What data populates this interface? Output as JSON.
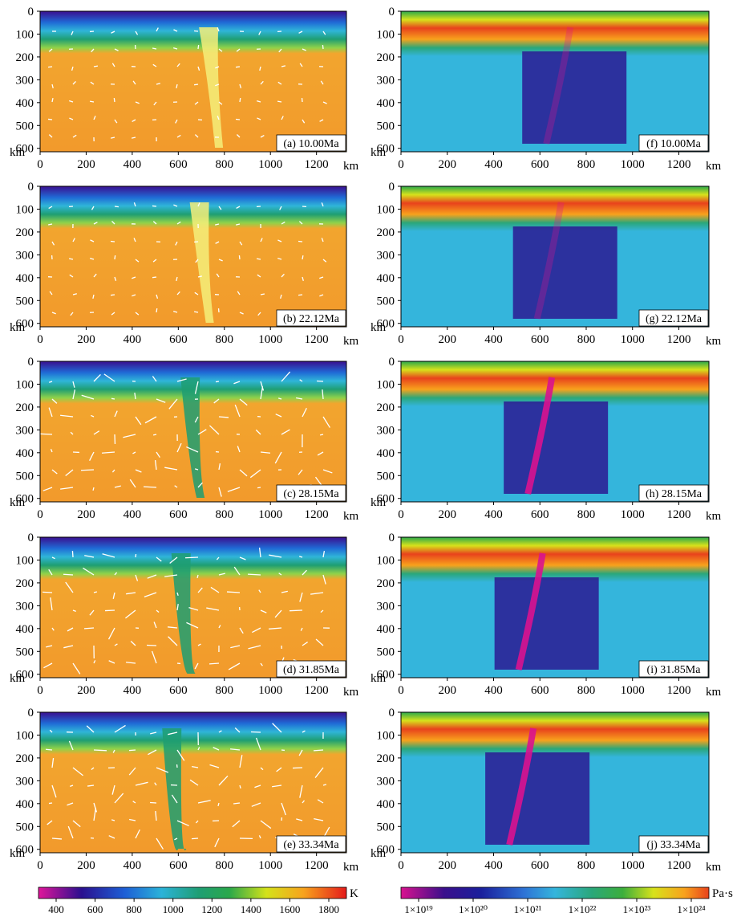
{
  "y_ticks": [
    "0",
    "100",
    "200",
    "300",
    "400",
    "500",
    "600"
  ],
  "x_ticks": [
    "0",
    "200",
    "400",
    "600",
    "800",
    "1000",
    "1200"
  ],
  "km": "km",
  "panels_left": [
    {
      "label": "(a) 10.00Ma"
    },
    {
      "label": "(b) 22.12Ma"
    },
    {
      "label": "(c) 28.15Ma"
    },
    {
      "label": "(d) 31.85Ma"
    },
    {
      "label": "(e) 33.34Ma"
    }
  ],
  "panels_right": [
    {
      "label": "(f) 10.00Ma"
    },
    {
      "label": "(g) 22.12Ma"
    },
    {
      "label": "(h) 28.15Ma"
    },
    {
      "label": "(i) 31.85Ma"
    },
    {
      "label": "(j) 33.34Ma"
    }
  ],
  "colorbar_temperature": {
    "unit": "K",
    "ticks": [
      "400",
      "600",
      "800",
      "1000",
      "1200",
      "1400",
      "1600",
      "1800"
    ],
    "colors": [
      "#e0159a",
      "#2a108f",
      "#1d5fd6",
      "#2bb3d8",
      "#1f9e74",
      "#2aa84a",
      "#d4e21a",
      "#f7a31d",
      "#e6441c",
      "#e51b1b"
    ]
  },
  "colorbar_viscosity": {
    "unit": "Pa·s",
    "ticks": [
      "1×10¹⁹",
      "1×10²⁰",
      "1×10²¹",
      "1×10²²",
      "1×10²³",
      "1×10²⁴"
    ],
    "colors": [
      "#d9138f",
      "#3a0f8c",
      "#1a1f9c",
      "#2e73d6",
      "#34b5dc",
      "#2aa77a",
      "#3cae3c",
      "#d7e21b",
      "#f8a21c",
      "#e8421c"
    ]
  }
}
